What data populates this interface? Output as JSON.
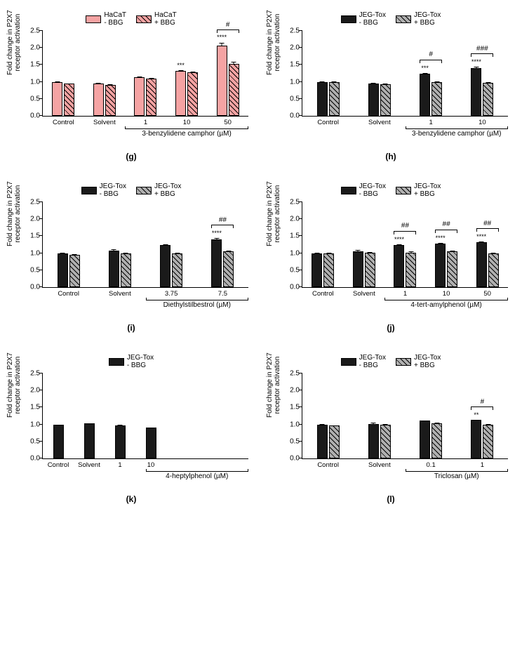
{
  "global": {
    "ylabel": "Fold change in P2X7\nreceptor activation",
    "yticks": [
      0.0,
      0.5,
      1.0,
      1.5,
      2.0,
      2.5
    ],
    "ymax": 2.5,
    "axis_color": "#000000",
    "background": "#ffffff"
  },
  "colors": {
    "hacat_solid": "#f5a3a3",
    "hacat_hatch": "#f5a3a3",
    "jeg_solid": "#1a1a1a",
    "jeg_hatch": "#b0b0b0"
  },
  "legends": {
    "hacat": [
      {
        "label": "HaCaT\n- BBG",
        "fill": "hacat_solid",
        "hatched": false
      },
      {
        "label": "HaCaT\n+ BBG",
        "fill": "hacat_hatch",
        "hatched": true
      }
    ],
    "jeg": [
      {
        "label": "JEG-Tox\n- BBG",
        "fill": "jeg_solid",
        "hatched": false
      },
      {
        "label": "JEG-Tox\n+ BBG",
        "fill": "jeg_hatch",
        "hatched": true
      }
    ]
  },
  "panels": [
    {
      "id": "g",
      "legend": "hacat",
      "paired": true,
      "sub_axis_label": "3-benzylidene camphor (µM)",
      "sub_axis_from": 2,
      "groups": [
        {
          "label": "Control",
          "bars": [
            {
              "v": 1.0,
              "e": 0.03
            },
            {
              "v": 0.96,
              "e": 0.02
            }
          ]
        },
        {
          "label": "Solvent",
          "bars": [
            {
              "v": 0.95,
              "e": 0.04
            },
            {
              "v": 0.91,
              "e": 0.05
            }
          ]
        },
        {
          "label": "1",
          "bars": [
            {
              "v": 1.13,
              "e": 0.05
            },
            {
              "v": 1.1,
              "e": 0.04
            }
          ]
        },
        {
          "label": "10",
          "bars": [
            {
              "v": 1.33,
              "e": 0.04,
              "sig": "***"
            },
            {
              "v": 1.28,
              "e": 0.04
            }
          ]
        },
        {
          "label": "50",
          "bars": [
            {
              "v": 2.07,
              "e": 0.1,
              "sig": "****"
            },
            {
              "v": 1.52,
              "e": 0.09
            }
          ],
          "bracket": "#"
        }
      ]
    },
    {
      "id": "h",
      "legend": "jeg",
      "paired": true,
      "sub_axis_label": "3-benzylidene camphor (µM)",
      "sub_axis_from": 2,
      "groups": [
        {
          "label": "Control",
          "bars": [
            {
              "v": 1.0,
              "e": 0.04
            },
            {
              "v": 0.99,
              "e": 0.04
            }
          ]
        },
        {
          "label": "Solvent",
          "bars": [
            {
              "v": 0.96,
              "e": 0.04
            },
            {
              "v": 0.93,
              "e": 0.04
            }
          ]
        },
        {
          "label": "1",
          "bars": [
            {
              "v": 1.23,
              "e": 0.06,
              "sig": "***"
            },
            {
              "v": 1.0,
              "e": 0.04
            }
          ],
          "bracket": "#"
        },
        {
          "label": "10",
          "bars": [
            {
              "v": 1.41,
              "e": 0.05,
              "sig": "****"
            },
            {
              "v": 0.97,
              "e": 0.04
            }
          ],
          "bracket": "###"
        }
      ]
    },
    {
      "id": "i",
      "legend": "jeg",
      "paired": true,
      "sub_axis_label": "Diethylstilbestrol (µM)",
      "sub_axis_from": 2,
      "groups": [
        {
          "label": "Control",
          "bars": [
            {
              "v": 1.0,
              "e": 0.04
            },
            {
              "v": 0.96,
              "e": 0.04
            }
          ]
        },
        {
          "label": "Solvent",
          "bars": [
            {
              "v": 1.08,
              "e": 0.05
            },
            {
              "v": 1.0,
              "e": 0.04
            }
          ]
        },
        {
          "label": "3.75",
          "bars": [
            {
              "v": 1.24,
              "e": 0.05
            },
            {
              "v": 1.0,
              "e": 0.04
            }
          ]
        },
        {
          "label": "7.5",
          "bars": [
            {
              "v": 1.41,
              "e": 0.05,
              "sig": "****"
            },
            {
              "v": 1.06,
              "e": 0.04
            }
          ],
          "bracket": "##"
        }
      ]
    },
    {
      "id": "j",
      "legend": "jeg",
      "paired": true,
      "sub_axis_label": "4-tert-amylphenol (µM)",
      "sub_axis_from": 2,
      "groups": [
        {
          "label": "Control",
          "bars": [
            {
              "v": 1.0,
              "e": 0.04
            },
            {
              "v": 0.99,
              "e": 0.05
            }
          ]
        },
        {
          "label": "Solvent",
          "bars": [
            {
              "v": 1.06,
              "e": 0.05
            },
            {
              "v": 1.01,
              "e": 0.05
            }
          ]
        },
        {
          "label": "1",
          "bars": [
            {
              "v": 1.25,
              "e": 0.04,
              "sig": "****"
            },
            {
              "v": 1.01,
              "e": 0.06
            }
          ],
          "bracket": "##"
        },
        {
          "label": "10",
          "bars": [
            {
              "v": 1.29,
              "e": 0.04,
              "sig": "****"
            },
            {
              "v": 1.05,
              "e": 0.05
            }
          ],
          "bracket": "##"
        },
        {
          "label": "50",
          "bars": [
            {
              "v": 1.32,
              "e": 0.04,
              "sig": "****"
            },
            {
              "v": 0.99,
              "e": 0.05
            }
          ],
          "bracket": "##"
        }
      ]
    },
    {
      "id": "k",
      "legend": "jeg",
      "paired": false,
      "narrow_groups": true,
      "sub_axis_label": "4-heptylphenol (µM)",
      "sub_axis_from": 2,
      "groups": [
        {
          "label": "Control",
          "bars": [
            {
              "v": 1.0,
              "e": 0.02
            }
          ]
        },
        {
          "label": "Solvent",
          "bars": [
            {
              "v": 1.03,
              "e": 0.02
            }
          ]
        },
        {
          "label": "1",
          "bars": [
            {
              "v": 0.98,
              "e": 0.04
            }
          ]
        },
        {
          "label": "10",
          "bars": [
            {
              "v": 0.91,
              "e": 0.02
            }
          ]
        }
      ]
    },
    {
      "id": "l",
      "legend": "jeg",
      "paired": true,
      "sub_axis_label": "Triclosan (µM)",
      "sub_axis_from": 2,
      "groups": [
        {
          "label": "Control",
          "bars": [
            {
              "v": 1.0,
              "e": 0.04
            },
            {
              "v": 0.97,
              "e": 0.03
            }
          ]
        },
        {
          "label": "Solvent",
          "bars": [
            {
              "v": 1.02,
              "e": 0.05
            },
            {
              "v": 1.0,
              "e": 0.04
            }
          ]
        },
        {
          "label": "0.1",
          "bars": [
            {
              "v": 1.11,
              "e": 0.03
            },
            {
              "v": 1.03,
              "e": 0.04
            }
          ]
        },
        {
          "label": "1",
          "bars": [
            {
              "v": 1.13,
              "e": 0.03,
              "sig": "**"
            },
            {
              "v": 0.99,
              "e": 0.04
            }
          ],
          "bracket": "#"
        }
      ]
    }
  ]
}
